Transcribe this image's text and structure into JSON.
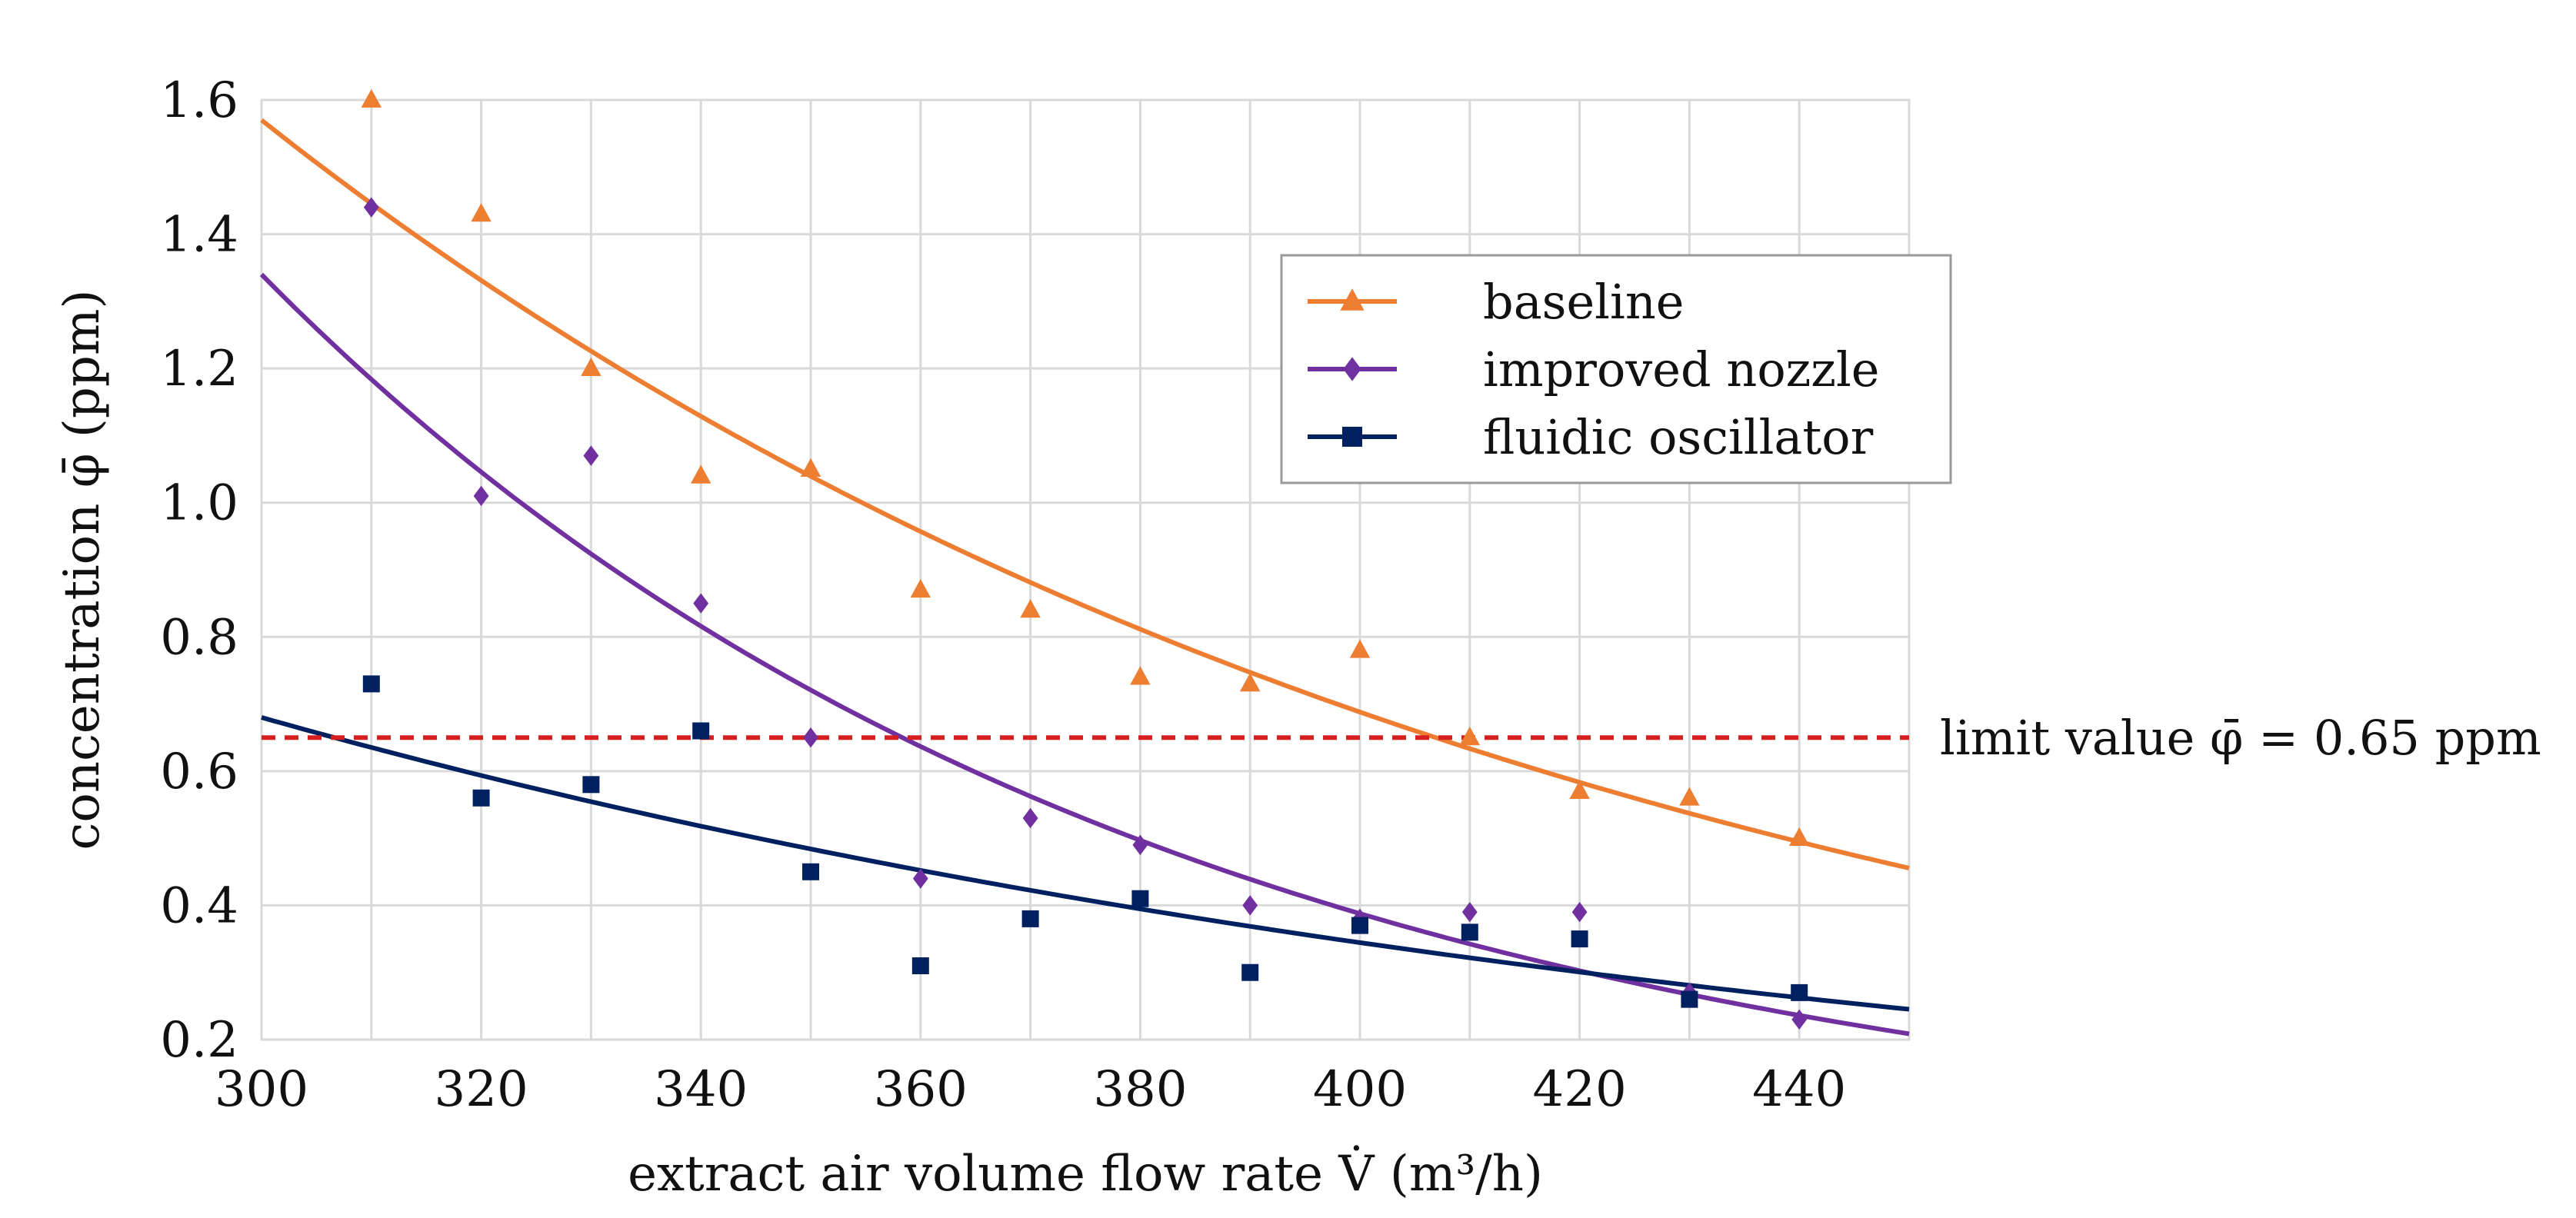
{
  "chart_data": {
    "type": "scatter",
    "title": "",
    "xlabel": "extract air volume flow rate V̇ (m³/h)",
    "ylabel": "concentration φ̄ (ppm)",
    "xlim": [
      300,
      450
    ],
    "ylim": [
      0.2,
      1.6
    ],
    "xticks": [
      300,
      320,
      340,
      360,
      380,
      400,
      420,
      440
    ],
    "yticks": [
      0.2,
      0.4,
      0.6,
      0.8,
      1.0,
      1.2,
      1.4,
      1.6
    ],
    "xtick_labels": [
      "300",
      "320",
      "340",
      "360",
      "380",
      "400",
      "420",
      "440"
    ],
    "ytick_labels": [
      "0.2",
      "0.4",
      "0.6",
      "0.8",
      "1.0",
      "1.2",
      "1.4",
      "1.6"
    ],
    "grid": true,
    "legend_position": "top-right",
    "series": [
      {
        "name": "baseline",
        "color": "#ed7d31",
        "marker": "triangle",
        "x": [
          310,
          320,
          330,
          340,
          350,
          360,
          370,
          380,
          390,
          400,
          410,
          420,
          430,
          440
        ],
        "values": [
          1.6,
          1.43,
          1.2,
          1.04,
          1.05,
          0.87,
          0.84,
          0.74,
          0.73,
          0.78,
          0.65,
          0.57,
          0.56,
          0.5
        ],
        "trendline": {
          "type": "exponential",
          "a": 1.57,
          "b": -0.00825
        }
      },
      {
        "name": "improved nozzle",
        "color": "#7030a0",
        "marker": "diamond",
        "x": [
          310,
          320,
          330,
          340,
          350,
          360,
          370,
          380,
          390,
          400,
          410,
          420,
          430,
          440
        ],
        "values": [
          1.44,
          1.01,
          1.07,
          0.85,
          0.65,
          0.44,
          0.53,
          0.49,
          0.4,
          0.38,
          0.39,
          0.39,
          0.27,
          0.23
        ],
        "trendline": {
          "type": "exponential",
          "a": 1.34,
          "b": -0.0124
        }
      },
      {
        "name": "fluidic oscillator",
        "color": "#002060",
        "marker": "square",
        "x": [
          310,
          320,
          330,
          340,
          350,
          360,
          370,
          380,
          390,
          400,
          410,
          420,
          430,
          440
        ],
        "values": [
          0.73,
          0.56,
          0.58,
          0.66,
          0.45,
          0.31,
          0.38,
          0.41,
          0.3,
          0.37,
          0.36,
          0.35,
          0.26,
          0.27
        ],
        "trendline": {
          "type": "exponential",
          "a": 0.68,
          "b": -0.0068
        }
      }
    ],
    "reference_line": {
      "y": 0.65,
      "label": "limit value φ̄ = 0.65 ppm",
      "color": "#d62020",
      "style": "dashed"
    }
  }
}
